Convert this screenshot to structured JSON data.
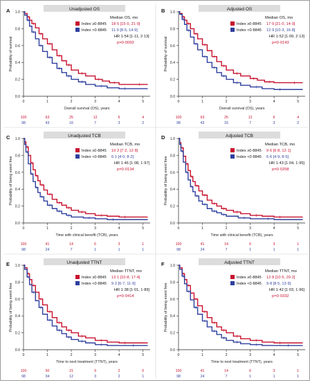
{
  "colors": {
    "high": "#c8102e",
    "low": "#2e3f9e",
    "title_bg": "#dcdcdc",
    "pvalue": "#c8102e"
  },
  "chart_data": [
    {
      "type": "line",
      "panel_letter": "A",
      "title": "Unadjusted OS",
      "xlabel": "Overall survival (OS), years",
      "ylabel": "Probability of survival",
      "xlim": [
        0,
        5.3
      ],
      "ylim": [
        0,
        1.0
      ],
      "x_ticks": [
        "0",
        "1",
        "2",
        "3",
        "4",
        "5"
      ],
      "y_ticks": [
        "0.0",
        "0.2",
        "0.4",
        "0.6",
        "0.8",
        "1.0"
      ],
      "legend": {
        "header": "Median OS, mo",
        "entries": [
          {
            "name": "Index ≥0·8845",
            "value": "18·5 [15·0, 21·0]"
          },
          {
            "name": "Index <0·8845",
            "value": "11·9 [8·5, 14·9]"
          }
        ],
        "hr": "HR 1·54 [1·11, 2·13]",
        "p": "p=0·0093"
      },
      "series": [
        {
          "name": "Index ≥0·8845",
          "x": [
            0,
            0.05,
            0.15,
            0.25,
            0.35,
            0.5,
            0.65,
            0.8,
            1.0,
            1.2,
            1.4,
            1.6,
            1.8,
            2.0,
            2.3,
            2.6,
            3.0,
            3.3,
            3.6,
            4.0,
            4.5,
            5.2
          ],
          "y": [
            1.0,
            0.98,
            0.94,
            0.9,
            0.86,
            0.81,
            0.74,
            0.68,
            0.62,
            0.55,
            0.48,
            0.42,
            0.37,
            0.31,
            0.27,
            0.24,
            0.2,
            0.18,
            0.16,
            0.14,
            0.14,
            0.14
          ]
        },
        {
          "name": "Index <0·8845",
          "x": [
            0,
            0.05,
            0.15,
            0.25,
            0.35,
            0.5,
            0.65,
            0.8,
            1.0,
            1.2,
            1.4,
            1.6,
            1.8,
            2.0,
            2.3,
            2.6,
            3.0,
            3.5,
            4.0,
            4.5,
            5.2
          ],
          "y": [
            1.0,
            0.96,
            0.9,
            0.83,
            0.76,
            0.68,
            0.6,
            0.53,
            0.46,
            0.39,
            0.33,
            0.28,
            0.24,
            0.2,
            0.17,
            0.14,
            0.12,
            0.1,
            0.09,
            0.09,
            0.09
          ]
        }
      ],
      "risk_table": [
        [
          "100",
          "63",
          "25",
          "12",
          "6",
          "4"
        ],
        [
          "98",
          "43",
          "16",
          "7",
          "3",
          "2"
        ]
      ]
    },
    {
      "type": "line",
      "panel_letter": "B",
      "title": "Adjusted OS",
      "xlabel": "Overall survival (OS), years",
      "ylabel": "Probability of survival",
      "xlim": [
        0,
        5.3
      ],
      "ylim": [
        0,
        1.0
      ],
      "x_ticks": [
        "0",
        "1",
        "2",
        "3",
        "4",
        "5"
      ],
      "y_ticks": [
        "0.0",
        "0.2",
        "0.4",
        "0.6",
        "0.8",
        "1.0"
      ],
      "legend": {
        "header": "Median OS, mo",
        "entries": [
          {
            "name": "Index ≥0·8845",
            "value": "17·9 [21·0, 14·0]"
          },
          {
            "name": "Index <0·8845",
            "value": "12·9 [10·3, 16·8]"
          }
        ],
        "hr": "HR 1·52 [1·09, 2·13]",
        "p": "p=0·0143"
      },
      "series": [
        {
          "name": "Index ≥0·8845",
          "x": [
            0,
            0.05,
            0.15,
            0.25,
            0.35,
            0.5,
            0.65,
            0.8,
            1.0,
            1.2,
            1.4,
            1.6,
            1.8,
            2.0,
            2.3,
            2.6,
            3.0,
            3.3,
            3.6,
            4.0,
            4.5,
            5.2
          ],
          "y": [
            1.0,
            0.98,
            0.94,
            0.9,
            0.86,
            0.8,
            0.74,
            0.68,
            0.61,
            0.54,
            0.47,
            0.41,
            0.36,
            0.31,
            0.27,
            0.24,
            0.21,
            0.19,
            0.17,
            0.16,
            0.16,
            0.16
          ]
        },
        {
          "name": "Index <0·8845",
          "x": [
            0,
            0.05,
            0.15,
            0.25,
            0.35,
            0.5,
            0.65,
            0.8,
            1.0,
            1.2,
            1.4,
            1.6,
            1.8,
            2.0,
            2.3,
            2.6,
            3.0,
            3.5,
            4.0,
            4.5,
            5.2
          ],
          "y": [
            1.0,
            0.97,
            0.91,
            0.85,
            0.78,
            0.7,
            0.62,
            0.55,
            0.47,
            0.4,
            0.34,
            0.28,
            0.24,
            0.2,
            0.16,
            0.13,
            0.11,
            0.09,
            0.08,
            0.08,
            0.08
          ]
        }
      ],
      "risk_table": [
        [
          "100",
          "63",
          "25",
          "12",
          "6",
          "4"
        ],
        [
          "98",
          "43",
          "16",
          "7",
          "3",
          "2"
        ]
      ]
    },
    {
      "type": "line",
      "panel_letter": "C",
      "title": "Unadjusted TCB",
      "xlabel": "Time with clinical benefit (TCB), years",
      "ylabel": "Probability of being event free",
      "xlim": [
        0,
        5.3
      ],
      "ylim": [
        0,
        1.0
      ],
      "x_ticks": [
        "0",
        "1",
        "2",
        "3",
        "4",
        "5"
      ],
      "y_ticks": [
        "0.0",
        "0.2",
        "0.4",
        "0.6",
        "0.8",
        "1.0"
      ],
      "legend": {
        "header": "Median TCB, mo",
        "entries": [
          {
            "name": "Index ≥0·8845",
            "value": "10·2 [7·2, 12·8]"
          },
          {
            "name": "Index <0·8845",
            "value": "6·1 [4·0, 8·2]"
          }
        ],
        "hr": "HR 1·46 [1·08, 1·97]",
        "p": "p=0·0134"
      },
      "series": [
        {
          "name": "Index ≥0·8845",
          "x": [
            0,
            0.05,
            0.1,
            0.2,
            0.3,
            0.4,
            0.5,
            0.6,
            0.7,
            0.85,
            1.0,
            1.2,
            1.4,
            1.6,
            1.8,
            2.0,
            2.3,
            2.6,
            3.0,
            3.5,
            4.0,
            4.5,
            5.2
          ],
          "y": [
            1.0,
            0.96,
            0.9,
            0.8,
            0.71,
            0.63,
            0.56,
            0.5,
            0.45,
            0.39,
            0.34,
            0.28,
            0.24,
            0.21,
            0.18,
            0.15,
            0.13,
            0.11,
            0.09,
            0.08,
            0.07,
            0.07,
            0.07
          ]
        },
        {
          "name": "Index <0·8845",
          "x": [
            0,
            0.05,
            0.1,
            0.2,
            0.3,
            0.4,
            0.5,
            0.6,
            0.7,
            0.85,
            1.0,
            1.2,
            1.4,
            1.6,
            1.8,
            2.0,
            2.5,
            3.0,
            3.5,
            4.0,
            5.2
          ],
          "y": [
            1.0,
            0.93,
            0.84,
            0.7,
            0.58,
            0.49,
            0.42,
            0.36,
            0.31,
            0.26,
            0.21,
            0.17,
            0.14,
            0.11,
            0.09,
            0.07,
            0.06,
            0.05,
            0.04,
            0.04,
            0.04
          ]
        }
      ],
      "risk_table": [
        [
          "100",
          "41",
          "14",
          "6",
          "3",
          "1"
        ],
        [
          "98",
          "24",
          "7",
          "1",
          "1",
          "1"
        ]
      ]
    },
    {
      "type": "line",
      "panel_letter": "D",
      "title": "Adjusted TCB",
      "xlabel": "Time with clinical benefit (TCB), years",
      "ylabel": "Probability of being event free",
      "xlim": [
        0,
        5.3
      ],
      "ylim": [
        0,
        1.0
      ],
      "x_ticks": [
        "0",
        "1",
        "2",
        "3",
        "4",
        "5"
      ],
      "y_ticks": [
        "0.0",
        "0.2",
        "0.4",
        "0.6",
        "0.8",
        "1.0"
      ],
      "legend": {
        "header": "Median TCB, mo",
        "entries": [
          {
            "name": "Index ≥0·8845",
            "value": "9·6 [6·8, 12·1]"
          },
          {
            "name": "Index <0·8845",
            "value": "6·6 [4·9, 8·5]"
          }
        ],
        "hr": "HR 1·43 [1·04, 1·95]",
        "p": "p=0·0258"
      },
      "series": [
        {
          "name": "Index ≥0·8845",
          "x": [
            0,
            0.05,
            0.1,
            0.2,
            0.3,
            0.4,
            0.5,
            0.6,
            0.7,
            0.85,
            1.0,
            1.2,
            1.4,
            1.6,
            1.8,
            2.0,
            2.3,
            2.6,
            3.0,
            3.5,
            4.0,
            4.5,
            5.2
          ],
          "y": [
            1.0,
            0.95,
            0.89,
            0.79,
            0.7,
            0.62,
            0.55,
            0.49,
            0.44,
            0.38,
            0.33,
            0.27,
            0.23,
            0.2,
            0.17,
            0.15,
            0.13,
            0.11,
            0.09,
            0.08,
            0.07,
            0.07,
            0.07
          ]
        },
        {
          "name": "Index <0·8845",
          "x": [
            0,
            0.05,
            0.1,
            0.2,
            0.3,
            0.4,
            0.5,
            0.6,
            0.7,
            0.85,
            1.0,
            1.2,
            1.4,
            1.6,
            1.8,
            2.0,
            2.5,
            3.0,
            3.5,
            4.0,
            5.2
          ],
          "y": [
            1.0,
            0.93,
            0.85,
            0.72,
            0.6,
            0.51,
            0.43,
            0.37,
            0.32,
            0.26,
            0.22,
            0.17,
            0.14,
            0.12,
            0.1,
            0.08,
            0.06,
            0.05,
            0.05,
            0.04,
            0.04
          ]
        }
      ],
      "risk_table": [
        [
          "100",
          "41",
          "14",
          "6",
          "3",
          "1"
        ],
        [
          "98",
          "24",
          "7",
          "1",
          "1",
          "1"
        ]
      ]
    },
    {
      "type": "line",
      "panel_letter": "E",
      "title": "Unadjusted TTNT",
      "xlabel": "Time to next treatment (TTNT), years",
      "ylabel": "Probability of being event free",
      "xlim": [
        0,
        5.3
      ],
      "ylim": [
        0,
        1.0
      ],
      "x_ticks": [
        "0",
        "1",
        "2",
        "3",
        "4",
        "5"
      ],
      "y_ticks": [
        "0.0",
        "0.2",
        "0.4",
        "0.6",
        "0.8",
        "1.0"
      ],
      "legend": {
        "header": "Median TTNT, mo",
        "entries": [
          {
            "name": "Index ≥0·8845",
            "value": "13·1 [10·8, 17·4]"
          },
          {
            "name": "Index <0·8845",
            "value": "9·2 [6·7, 11·9]"
          }
        ],
        "hr": "HR 1·38 [1·01, 1·89]",
        "p": "p=0·0414"
      },
      "series": [
        {
          "name": "Index ≥0·8845",
          "x": [
            0,
            0.05,
            0.15,
            0.25,
            0.35,
            0.5,
            0.65,
            0.8,
            1.0,
            1.2,
            1.4,
            1.6,
            1.8,
            2.0,
            2.3,
            2.6,
            3.0,
            3.5,
            4.0,
            4.5,
            5.2
          ],
          "y": [
            1.0,
            0.97,
            0.9,
            0.83,
            0.76,
            0.68,
            0.6,
            0.53,
            0.45,
            0.38,
            0.32,
            0.27,
            0.23,
            0.2,
            0.16,
            0.14,
            0.11,
            0.09,
            0.08,
            0.08,
            0.08
          ]
        },
        {
          "name": "Index <0·8845",
          "x": [
            0,
            0.05,
            0.15,
            0.25,
            0.35,
            0.5,
            0.65,
            0.8,
            1.0,
            1.2,
            1.4,
            1.6,
            1.8,
            2.0,
            2.3,
            2.6,
            3.0,
            3.5,
            4.0,
            5.2
          ],
          "y": [
            1.0,
            0.95,
            0.86,
            0.77,
            0.68,
            0.58,
            0.5,
            0.42,
            0.35,
            0.28,
            0.23,
            0.19,
            0.15,
            0.12,
            0.1,
            0.08,
            0.06,
            0.05,
            0.05,
            0.05
          ]
        }
      ],
      "risk_table": [
        [
          "100",
          "50",
          "21",
          "9",
          "2",
          "0"
        ],
        [
          "98",
          "34",
          "12",
          "3",
          "2",
          "1"
        ]
      ]
    },
    {
      "type": "line",
      "panel_letter": "F",
      "title": "Adjusted TTNT",
      "xlabel": "Time to next treatment (TTNT), years",
      "ylabel": "Probability of being event free",
      "xlim": [
        0,
        5.3
      ],
      "ylim": [
        0,
        1.0
      ],
      "x_ticks": [
        "0",
        "1",
        "2",
        "3",
        "4",
        "5"
      ],
      "y_ticks": [
        "0.0",
        "0.2",
        "0.4",
        "0.6",
        "0.8",
        "1.0"
      ],
      "legend": {
        "header": "Median TTNT, mo",
        "entries": [
          {
            "name": "Index ≥0·8845",
            "value": "12·8 [10·5, 20·2]"
          },
          {
            "name": "Index <0·8845",
            "value": "9·8 [8·5, 13·9]"
          }
        ],
        "hr": "HR 1·42 [1·03, 1·96]",
        "p": "p=0·0332"
      },
      "series": [
        {
          "name": "Index ≥0·8845",
          "x": [
            0,
            0.05,
            0.15,
            0.25,
            0.35,
            0.5,
            0.65,
            0.8,
            1.0,
            1.2,
            1.4,
            1.6,
            1.8,
            2.0,
            2.3,
            2.6,
            3.0,
            3.5,
            4.0,
            4.5,
            5.2
          ],
          "y": [
            1.0,
            0.97,
            0.9,
            0.83,
            0.76,
            0.67,
            0.6,
            0.52,
            0.45,
            0.38,
            0.32,
            0.27,
            0.23,
            0.2,
            0.16,
            0.13,
            0.11,
            0.09,
            0.08,
            0.08,
            0.08
          ]
        },
        {
          "name": "Index <0·8845",
          "x": [
            0,
            0.05,
            0.15,
            0.25,
            0.35,
            0.5,
            0.65,
            0.8,
            1.0,
            1.2,
            1.4,
            1.6,
            1.8,
            2.0,
            2.3,
            2.6,
            3.0,
            3.5,
            4.0,
            5.2
          ],
          "y": [
            1.0,
            0.95,
            0.87,
            0.78,
            0.69,
            0.59,
            0.5,
            0.42,
            0.34,
            0.27,
            0.22,
            0.18,
            0.14,
            0.11,
            0.09,
            0.07,
            0.06,
            0.05,
            0.05,
            0.05
          ]
        }
      ],
      "risk_table": [
        [
          "100",
          "41",
          "14",
          "6",
          "3",
          "1"
        ],
        [
          "98",
          "24",
          "7",
          "1",
          "1",
          "1"
        ]
      ]
    }
  ]
}
